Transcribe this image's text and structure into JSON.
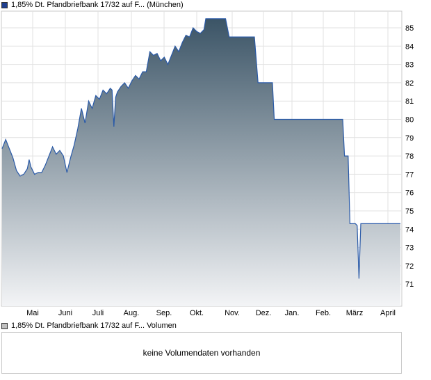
{
  "legend_price": {
    "label": "1,85% Dt. Pfandbriefbank 17/32 auf F... (München)",
    "color": "#1f3f8f"
  },
  "legend_volume": {
    "label": "1,85% Dt. Pfandbriefbank 17/32 auf F... Volumen",
    "color": "#c0c0c0"
  },
  "volume_panel": {
    "message": "keine Volumendaten vorhanden"
  },
  "chart_data": {
    "type": "area",
    "ylim": [
      70,
      86
    ],
    "y_ticks": [
      71,
      72,
      73,
      74,
      75,
      76,
      77,
      78,
      79,
      80,
      81,
      82,
      83,
      84,
      85
    ],
    "x_labels": [
      "Mai",
      "Juni",
      "Juli",
      "Aug.",
      "Sep.",
      "Okt.",
      "Nov.",
      "Dez.",
      "Jan.",
      "Feb.",
      "März",
      "April"
    ],
    "line_color": "#2a5aa8",
    "fill_top_color": "#3b5466",
    "fill_bottom_color": "#f3f4f6",
    "grid": true,
    "series": [
      {
        "values": [
          [
            0,
            78.4
          ],
          [
            2,
            78.9
          ],
          [
            4,
            78.4
          ],
          [
            6,
            77.9
          ],
          [
            8,
            77.2
          ],
          [
            10,
            76.9
          ],
          [
            12,
            77.0
          ],
          [
            14,
            77.3
          ],
          [
            15,
            77.8
          ],
          [
            16,
            77.4
          ],
          [
            18,
            77.0
          ],
          [
            20,
            77.1
          ],
          [
            22,
            77.1
          ],
          [
            24,
            77.5
          ],
          [
            26,
            78.0
          ],
          [
            28,
            78.5
          ],
          [
            30,
            78.1
          ],
          [
            32,
            78.3
          ],
          [
            34,
            78.0
          ],
          [
            36,
            77.1
          ],
          [
            38,
            77.9
          ],
          [
            40,
            78.6
          ],
          [
            42,
            79.5
          ],
          [
            44,
            80.6
          ],
          [
            46,
            79.8
          ],
          [
            48,
            81.0
          ],
          [
            50,
            80.6
          ],
          [
            52,
            81.3
          ],
          [
            54,
            81.1
          ],
          [
            56,
            81.6
          ],
          [
            58,
            81.4
          ],
          [
            60,
            81.7
          ],
          [
            61,
            81.6
          ],
          [
            62,
            79.6
          ],
          [
            63,
            81.2
          ],
          [
            64,
            81.5
          ],
          [
            66,
            81.8
          ],
          [
            68,
            82.0
          ],
          [
            70,
            81.7
          ],
          [
            72,
            82.1
          ],
          [
            74,
            82.4
          ],
          [
            76,
            82.2
          ],
          [
            78,
            82.6
          ],
          [
            80,
            82.6
          ],
          [
            82,
            83.7
          ],
          [
            84,
            83.5
          ],
          [
            86,
            83.6
          ],
          [
            88,
            83.2
          ],
          [
            90,
            83.4
          ],
          [
            92,
            83.0
          ],
          [
            94,
            83.5
          ],
          [
            96,
            84.0
          ],
          [
            98,
            83.7
          ],
          [
            100,
            84.2
          ],
          [
            102,
            84.6
          ],
          [
            104,
            84.5
          ],
          [
            106,
            85.0
          ],
          [
            108,
            84.8
          ],
          [
            110,
            84.7
          ],
          [
            112,
            84.9
          ],
          [
            113,
            85.5
          ],
          [
            114,
            85.5
          ],
          [
            120,
            85.5
          ],
          [
            122,
            85.5
          ],
          [
            124,
            85.5
          ],
          [
            126,
            84.5
          ],
          [
            128,
            84.5
          ],
          [
            133,
            84.5
          ],
          [
            134,
            84.5
          ],
          [
            139,
            84.5
          ],
          [
            140,
            84.5
          ],
          [
            142,
            82.0
          ],
          [
            150,
            82.0
          ],
          [
            151,
            80.0
          ],
          [
            155,
            80.0
          ],
          [
            160,
            80.0
          ],
          [
            170,
            80.0
          ],
          [
            180,
            80.0
          ],
          [
            189,
            80.0
          ],
          [
            190,
            78.0
          ],
          [
            192,
            78.0
          ],
          [
            193,
            74.3
          ],
          [
            196,
            74.3
          ],
          [
            197,
            74.2
          ],
          [
            198,
            71.3
          ],
          [
            199,
            74.3
          ],
          [
            200,
            74.3
          ],
          [
            205,
            74.3
          ],
          [
            210,
            74.3
          ],
          [
            220,
            74.3
          ],
          [
            221,
            74.3
          ]
        ]
      }
    ]
  }
}
